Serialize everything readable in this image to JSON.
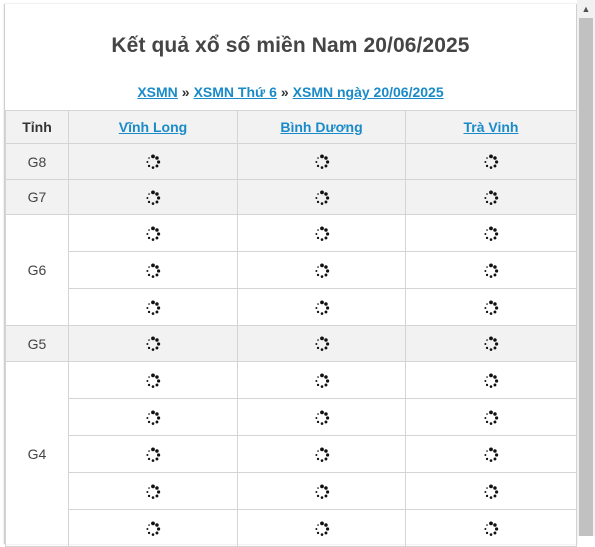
{
  "title": "Kết quả xổ số miền Nam 20/06/2025",
  "breadcrumb": {
    "items": [
      "XSMN",
      "XSMN Thứ 6",
      "XSMN ngày 20/06/2025"
    ],
    "separator": "»"
  },
  "table": {
    "header_label": "Tỉnh",
    "provinces": [
      "Vĩnh Long",
      "Bình Dương",
      "Trà Vinh"
    ],
    "prizes": [
      {
        "label": "G8",
        "rows": 1,
        "shaded": true
      },
      {
        "label": "G7",
        "rows": 1,
        "shaded": true
      },
      {
        "label": "G6",
        "rows": 3,
        "shaded": false
      },
      {
        "label": "G5",
        "rows": 1,
        "shaded": true
      },
      {
        "label": "G4",
        "rows": 5,
        "shaded": false
      }
    ],
    "cell_state": "loading-spinner-icon"
  },
  "colors": {
    "link": "#1a8bc8",
    "shaded_row": "#f2f2f2",
    "border": "#d4d4d4",
    "title": "#454545"
  }
}
